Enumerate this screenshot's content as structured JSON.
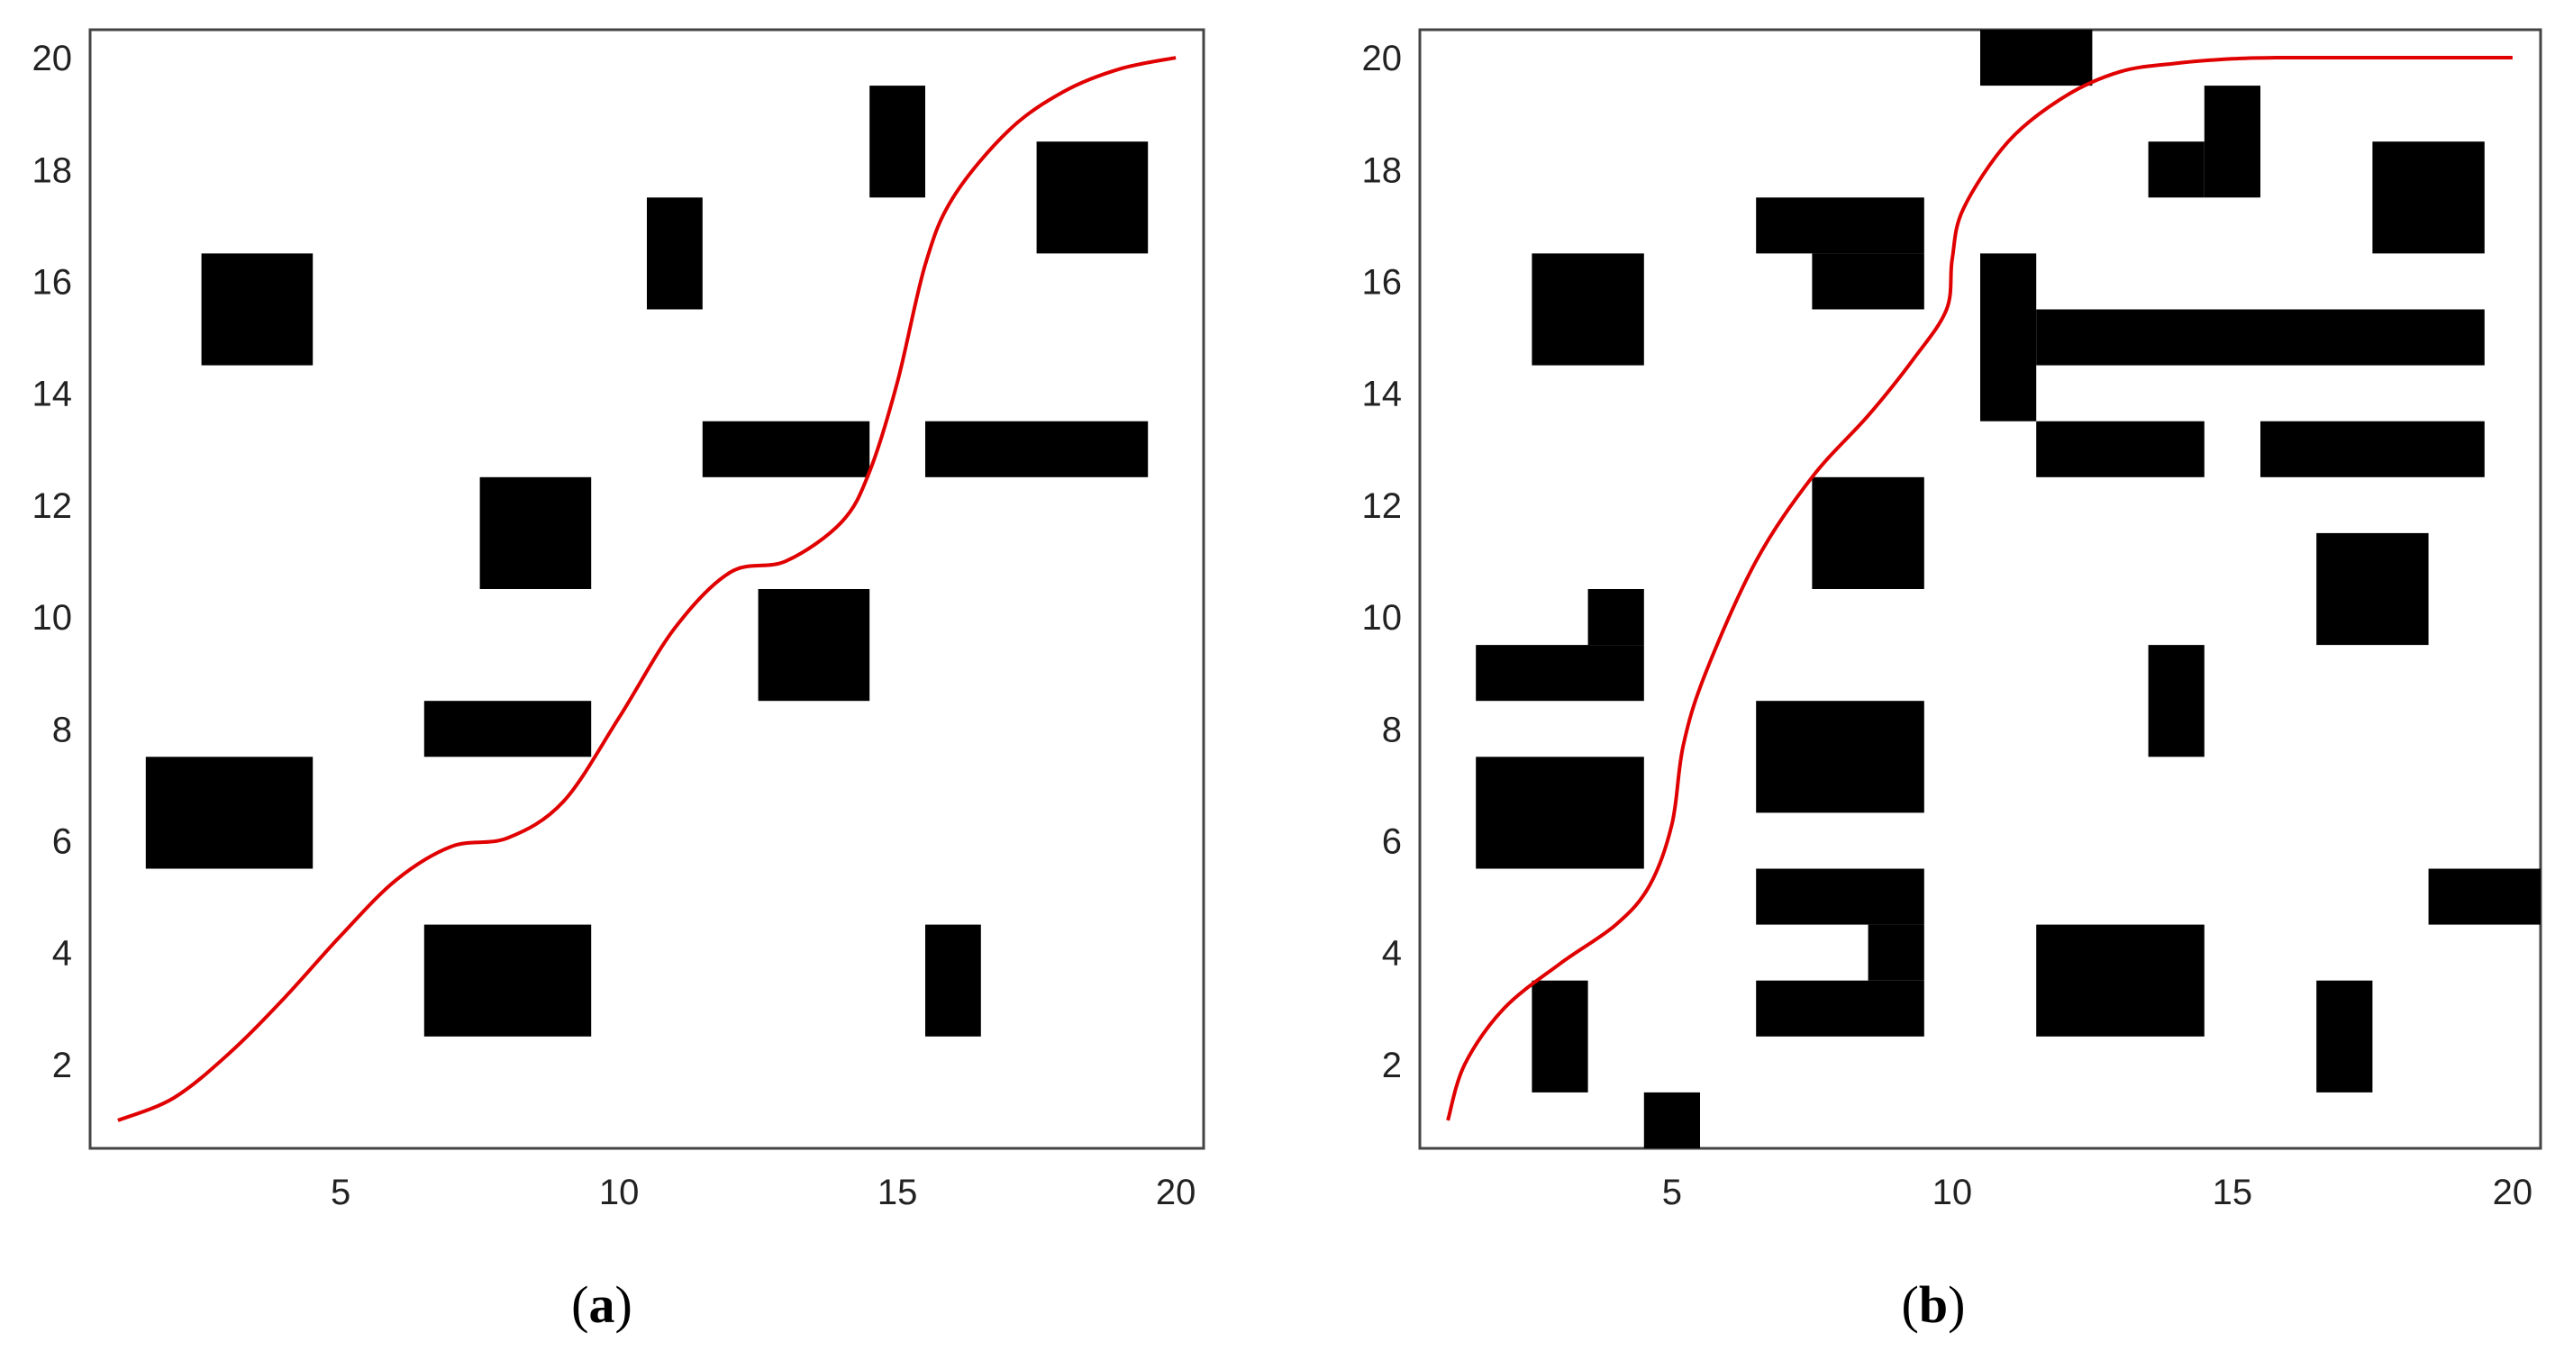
{
  "chart_data": [
    {
      "type": "scatter",
      "panel_caption": "a",
      "xlim": [
        0.5,
        20.5
      ],
      "ylim": [
        0.5,
        20.5
      ],
      "xticks": [
        5,
        10,
        15,
        20
      ],
      "yticks": [
        2,
        4,
        6,
        8,
        10,
        12,
        14,
        16,
        18,
        20
      ],
      "path_color": "#e00000",
      "obstacle_color": "#000000",
      "obstacles": [
        {
          "x": [
            3,
            4
          ],
          "y": [
            15,
            16
          ]
        },
        {
          "x": [
            2,
            4
          ],
          "y": [
            6,
            7
          ]
        },
        {
          "x": [
            7,
            9
          ],
          "y": [
            3,
            4
          ]
        },
        {
          "x": [
            7,
            9
          ],
          "y": [
            8,
            8
          ]
        },
        {
          "x": [
            8,
            9
          ],
          "y": [
            11,
            12
          ]
        },
        {
          "x": [
            11,
            11
          ],
          "y": [
            16,
            17
          ]
        },
        {
          "x": [
            12,
            14
          ],
          "y": [
            13,
            13
          ]
        },
        {
          "x": [
            13,
            14
          ],
          "y": [
            9,
            10
          ]
        },
        {
          "x": [
            15,
            15
          ],
          "y": [
            18,
            19
          ]
        },
        {
          "x": [
            16,
            16
          ],
          "y": [
            3,
            4
          ]
        },
        {
          "x": [
            16,
            19
          ],
          "y": [
            13,
            13
          ]
        },
        {
          "x": [
            18,
            19
          ],
          "y": [
            17,
            18
          ]
        }
      ],
      "path": {
        "x": [
          1,
          2,
          3,
          4,
          5,
          6,
          7,
          8,
          9,
          10,
          11,
          12,
          13,
          14,
          14.5,
          15,
          15.5,
          16,
          17,
          18,
          19,
          20
        ],
        "y": [
          1,
          1.4,
          2.2,
          3.2,
          4.3,
          5.3,
          5.9,
          6.05,
          6.7,
          8.2,
          9.8,
          10.8,
          11,
          11.7,
          12.6,
          14.2,
          16.3,
          17.5,
          18.7,
          19.4,
          19.8,
          20
        ]
      }
    },
    {
      "type": "scatter",
      "panel_caption": "b",
      "xlim": [
        0.5,
        20.5
      ],
      "ylim": [
        0.5,
        20.5
      ],
      "xticks": [
        5,
        10,
        15,
        20
      ],
      "yticks": [
        2,
        4,
        6,
        8,
        10,
        12,
        14,
        16,
        18,
        20
      ],
      "path_color": "#e00000",
      "obstacle_color": "#000000",
      "obstacles": [
        {
          "x": [
            11,
            12
          ],
          "y": [
            20,
            20
          ]
        },
        {
          "x": [
            15,
            15
          ],
          "y": [
            18,
            19
          ]
        },
        {
          "x": [
            14,
            14
          ],
          "y": [
            18,
            18
          ]
        },
        {
          "x": [
            18,
            19
          ],
          "y": [
            17,
            18
          ]
        },
        {
          "x": [
            7,
            9
          ],
          "y": [
            17,
            17
          ]
        },
        {
          "x": [
            8,
            9
          ],
          "y": [
            16,
            16
          ]
        },
        {
          "x": [
            3,
            4
          ],
          "y": [
            15,
            16
          ]
        },
        {
          "x": [
            11,
            11
          ],
          "y": [
            14,
            16
          ]
        },
        {
          "x": [
            12,
            19
          ],
          "y": [
            15,
            15
          ]
        },
        {
          "x": [
            12,
            14
          ],
          "y": [
            13,
            13
          ]
        },
        {
          "x": [
            16,
            19
          ],
          "y": [
            13,
            13
          ]
        },
        {
          "x": [
            8,
            9
          ],
          "y": [
            11,
            12
          ]
        },
        {
          "x": [
            17,
            18
          ],
          "y": [
            10,
            11
          ]
        },
        {
          "x": [
            4,
            4
          ],
          "y": [
            10,
            10
          ]
        },
        {
          "x": [
            2,
            4
          ],
          "y": [
            9,
            9
          ]
        },
        {
          "x": [
            14,
            14
          ],
          "y": [
            8,
            9
          ]
        },
        {
          "x": [
            7,
            9
          ],
          "y": [
            7,
            8
          ]
        },
        {
          "x": [
            2,
            4
          ],
          "y": [
            6,
            7
          ]
        },
        {
          "x": [
            7,
            9
          ],
          "y": [
            5,
            5
          ]
        },
        {
          "x": [
            9,
            9
          ],
          "y": [
            4,
            4
          ]
        },
        {
          "x": [
            7,
            9
          ],
          "y": [
            3,
            3
          ]
        },
        {
          "x": [
            19,
            20
          ],
          "y": [
            5,
            5
          ]
        },
        {
          "x": [
            12,
            14
          ],
          "y": [
            3,
            4
          ]
        },
        {
          "x": [
            3,
            3
          ],
          "y": [
            2,
            3
          ]
        },
        {
          "x": [
            17,
            17
          ],
          "y": [
            2,
            3
          ]
        },
        {
          "x": [
            5,
            5
          ],
          "y": [
            1,
            1
          ]
        }
      ],
      "path": {
        "x": [
          1,
          1.3,
          2,
          3,
          4,
          4.6,
          5,
          5.2,
          5.6,
          6.5,
          7.5,
          8.5,
          9.3,
          9.9,
          10,
          10.2,
          11,
          12,
          13,
          14,
          15,
          15.8,
          17,
          18,
          19,
          20
        ],
        "y": [
          1,
          2,
          3,
          3.8,
          4.5,
          5.2,
          6.3,
          7.7,
          9,
          11,
          12.5,
          13.6,
          14.6,
          15.5,
          16.4,
          17.3,
          18.5,
          19.3,
          19.75,
          19.9,
          19.98,
          20,
          20,
          20,
          20,
          20
        ]
      }
    }
  ]
}
